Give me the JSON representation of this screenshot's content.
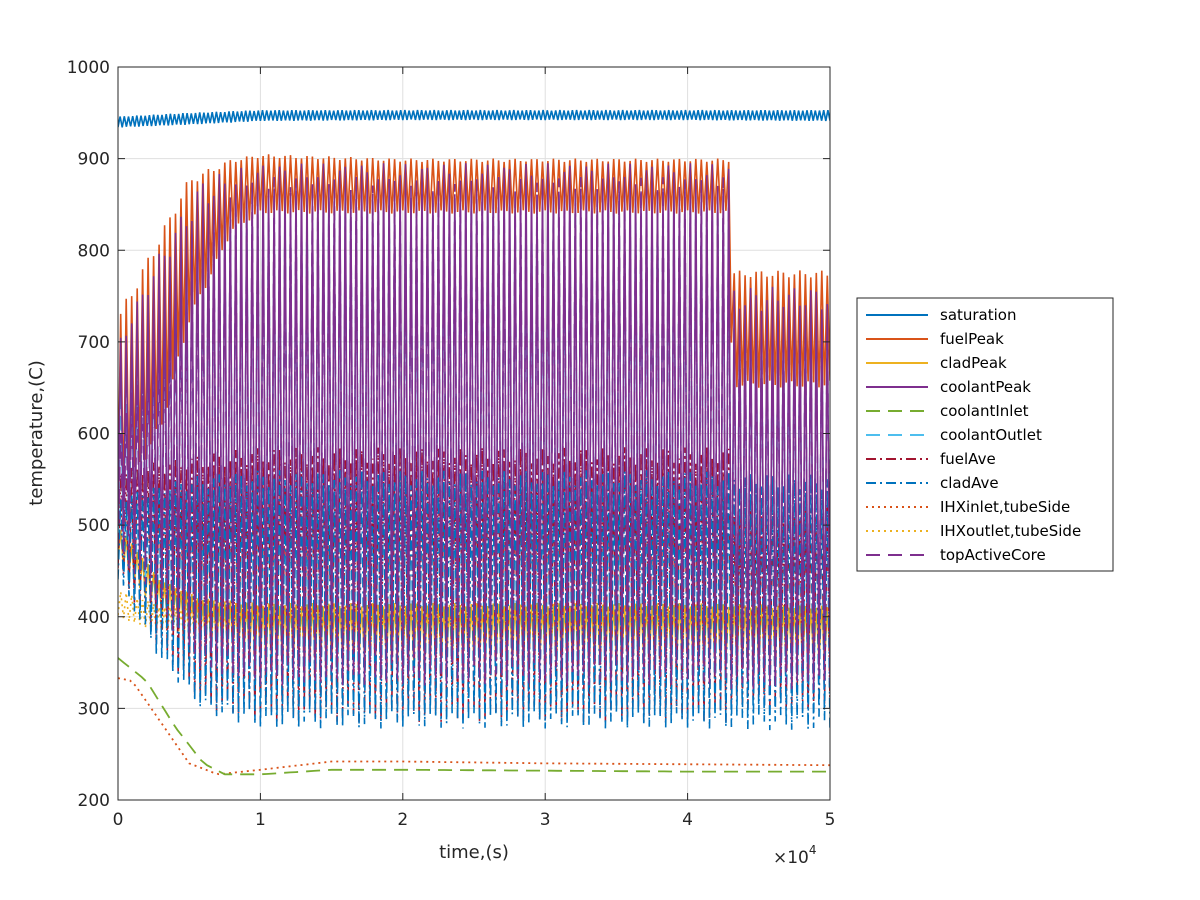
{
  "chart_data": {
    "type": "line",
    "title": "",
    "xlabel": "time,(s)",
    "ylabel": "temperature,(C)",
    "x_exponent_label": "×10",
    "x_exponent_power": "4",
    "xlim": [
      0,
      5
    ],
    "ylim": [
      200,
      1000
    ],
    "x_scale_factor": 10000,
    "x_ticks": [
      "0",
      "1",
      "2",
      "3",
      "4",
      "5"
    ],
    "y_ticks": [
      "200",
      "300",
      "400",
      "500",
      "600",
      "700",
      "800",
      "900",
      "1000"
    ],
    "grid": true,
    "legend_position": "outside-right",
    "series": [
      {
        "name": "saturation",
        "color": "#0072BD",
        "dash": "solid",
        "oscillating": true,
        "x": [
          0,
          0.5,
          1,
          2,
          3,
          4,
          5
        ],
        "low": [
          934,
          937,
          941,
          942,
          942,
          942,
          941
        ],
        "high": [
          946,
          950,
          953,
          953,
          953,
          953,
          953
        ]
      },
      {
        "name": "fuelPeak",
        "color": "#D95319",
        "dash": "solid",
        "oscillating": true,
        "x": [
          0,
          0.3,
          0.5,
          0.8,
          1,
          2,
          3,
          4.3,
          4.31,
          5
        ],
        "low": [
          520,
          600,
          720,
          820,
          840,
          840,
          840,
          840,
          650,
          650
        ],
        "high": [
          730,
          820,
          880,
          900,
          905,
          900,
          900,
          900,
          778,
          778
        ]
      },
      {
        "name": "cladPeak",
        "color": "#EDB120",
        "dash": "solid",
        "oscillating": true,
        "x": [
          0,
          0.3,
          0.6,
          1,
          2,
          3,
          4,
          5
        ],
        "low": [
          460,
          400,
          370,
          355,
          352,
          352,
          352,
          350
        ],
        "high": [
          500,
          440,
          420,
          415,
          415,
          415,
          415,
          412
        ]
      },
      {
        "name": "coolantPeak",
        "color": "#7E2F8E",
        "dash": "solid",
        "oscillating": true,
        "x": [
          0,
          0.3,
          0.6,
          1,
          2,
          3,
          4.3,
          4.31,
          5
        ],
        "low": [
          500,
          420,
          340,
          325,
          325,
          325,
          325,
          320,
          320
        ],
        "high": [
          700,
          800,
          880,
          895,
          895,
          895,
          895,
          760,
          760
        ]
      },
      {
        "name": "coolantInlet",
        "color": "#77AC30",
        "dash": "long",
        "oscillating": false,
        "x": [
          0,
          0.2,
          0.4,
          0.6,
          0.75,
          1,
          1.5,
          2,
          3,
          4,
          5
        ],
        "low": [
          355,
          330,
          280,
          240,
          228,
          228,
          233,
          233,
          232,
          231,
          231
        ],
        "high": []
      },
      {
        "name": "coolantOutlet",
        "color": "#4DBEEE",
        "dash": "long",
        "oscillating": true,
        "x": [
          0,
          0.3,
          0.6,
          1,
          2,
          3,
          4.3,
          4.31,
          5
        ],
        "low": [
          480,
          420,
          370,
          355,
          355,
          355,
          355,
          350,
          350
        ],
        "high": [
          640,
          760,
          840,
          860,
          860,
          860,
          860,
          730,
          730
        ]
      },
      {
        "name": "fuelAve",
        "color": "#A2142F",
        "dash": "dashdot",
        "oscillating": true,
        "x": [
          0,
          0.3,
          0.6,
          1,
          2,
          3,
          4.3,
          4.31,
          5
        ],
        "low": [
          450,
          360,
          300,
          285,
          285,
          285,
          285,
          300,
          300
        ],
        "high": [
          560,
          570,
          578,
          585,
          585,
          585,
          585,
          520,
          520
        ]
      },
      {
        "name": "cladAve",
        "color": "#0072BD",
        "dash": "dashdot",
        "oscillating": true,
        "x": [
          0,
          0.3,
          0.6,
          1,
          2,
          3,
          4,
          5
        ],
        "low": [
          440,
          350,
          295,
          278,
          278,
          278,
          278,
          275
        ],
        "high": [
          530,
          545,
          555,
          560,
          560,
          560,
          560,
          555
        ]
      },
      {
        "name": "IHXinlet,tubeSide",
        "color": "#D95319",
        "dash": "dotted",
        "oscillating": false,
        "x": [
          0,
          0.1,
          0.3,
          0.5,
          0.7,
          1,
          1.5,
          2,
          3,
          4,
          5
        ],
        "low": [
          333,
          330,
          285,
          240,
          228,
          233,
          242,
          242,
          240,
          239,
          238
        ],
        "high": []
      },
      {
        "name": "IHXoutlet,tubeSide",
        "color": "#EDB120",
        "dash": "dotted",
        "oscillating": true,
        "x": [
          0,
          0.3,
          0.6,
          1,
          2,
          3,
          4,
          5
        ],
        "low": [
          400,
          380,
          372,
          370,
          370,
          370,
          370,
          370
        ],
        "high": [
          430,
          412,
          408,
          408,
          408,
          408,
          408,
          406
        ]
      },
      {
        "name": "topActiveCore",
        "color": "#7E2F8E",
        "dash": "long",
        "oscillating": true,
        "x": [
          0,
          0.3,
          0.6,
          1,
          2,
          3,
          4.3,
          4.31,
          5
        ],
        "low": [
          470,
          400,
          345,
          330,
          330,
          330,
          330,
          325,
          325
        ],
        "high": [
          600,
          740,
          850,
          880,
          880,
          880,
          880,
          740,
          740
        ]
      }
    ]
  }
}
